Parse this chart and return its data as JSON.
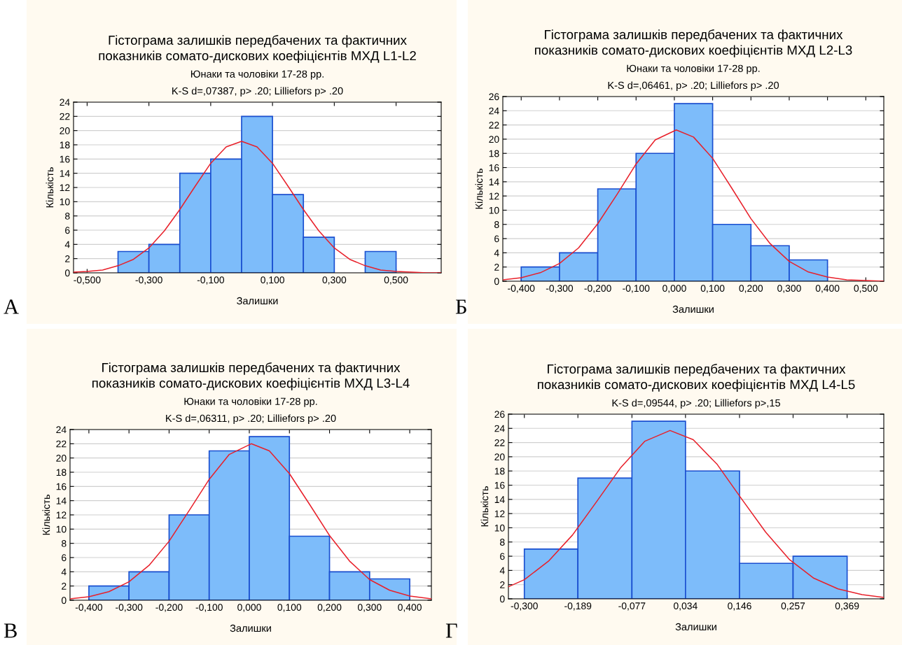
{
  "chart_data": [
    {
      "type": "histogram",
      "title": "Гістограма залишків передбачених та фактичних\nпоказників сомато-дискових коефіцієнтів МХД L1-L2",
      "subtitle": "Юнаки та чоловіки 17-28 рр.\nK-S d=,07387, p> .20; Lilliefors p> .20",
      "xlabel": "Залишки",
      "ylabel": "Кількість",
      "annotations": [
        "А"
      ],
      "bins": [
        -0.4,
        -0.3,
        -0.2,
        -0.1,
        0.0,
        0.1,
        0.2,
        0.3,
        0.4,
        0.5
      ],
      "values": [
        3,
        4,
        14,
        16,
        22,
        11,
        5,
        0,
        3
      ],
      "color": "#7dbcfa",
      "series": [
        {
          "type": "line",
          "color": "#e8202a",
          "x": [
            -0.544,
            -0.5,
            -0.45,
            -0.4,
            -0.35,
            -0.3,
            -0.25,
            -0.2,
            -0.15,
            -0.1,
            -0.05,
            0.0,
            0.05,
            0.1,
            0.15,
            0.2,
            0.25,
            0.3,
            0.35,
            0.4,
            0.45,
            0.5,
            0.55,
            0.6,
            0.646
          ],
          "values": [
            0.1,
            0.2,
            0.4,
            1.0,
            1.9,
            3.5,
            5.9,
            8.9,
            12.2,
            15.4,
            17.7,
            18.5,
            17.7,
            15.4,
            12.2,
            8.9,
            5.9,
            3.5,
            1.9,
            1.0,
            0.4,
            0.2,
            0.1,
            0.0,
            0.0
          ]
        }
      ],
      "xlim": [
        -0.544,
        0.646
      ],
      "xticks": [
        {
          "value": -0.5,
          "label": "-0,500"
        },
        {
          "value": -0.3,
          "label": "-0,300"
        },
        {
          "value": -0.1,
          "label": "-0,100"
        },
        {
          "value": 0.1,
          "label": "0,100"
        },
        {
          "value": 0.3,
          "label": "0,300"
        },
        {
          "value": 0.5,
          "label": "0,500"
        }
      ],
      "ylim": [
        0,
        24
      ],
      "yticks": [
        0,
        2,
        4,
        6,
        8,
        10,
        12,
        14,
        16,
        18,
        20,
        22,
        24
      ],
      "grid": "y"
    },
    {
      "type": "histogram",
      "title": "Гістограма залишків передбачених та фактичних\nпоказників сомато-дискових коефіцієнтів МХД L2-L3",
      "subtitle": "Юнаки та чоловіки 17-28 рр.\nK-S d=,06461, p> .20; Lilliefors p> .20",
      "xlabel": "Залишки",
      "ylabel": "Кількість",
      "annotations": [
        "Б"
      ],
      "bins": [
        -0.4,
        -0.3,
        -0.2,
        -0.1,
        0.0,
        0.1,
        0.2,
        0.3,
        0.4
      ],
      "values": [
        2,
        4,
        13,
        18,
        25,
        8,
        5,
        3
      ],
      "color": "#7dbcfa",
      "series": [
        {
          "type": "line",
          "color": "#e8202a",
          "x": [
            -0.448,
            -0.4,
            -0.35,
            -0.3,
            -0.25,
            -0.2,
            -0.15,
            -0.1,
            -0.05,
            0.005,
            0.05,
            0.1,
            0.15,
            0.2,
            0.25,
            0.3,
            0.35,
            0.4,
            0.45,
            0.5,
            0.547
          ],
          "values": [
            0.2,
            0.5,
            1.2,
            2.5,
            4.7,
            8.1,
            12.2,
            16.5,
            19.9,
            21.3,
            20.3,
            17.3,
            13.1,
            8.8,
            5.3,
            2.8,
            1.3,
            0.6,
            0.2,
            0.1,
            0.0
          ]
        }
      ],
      "xlim": [
        -0.448,
        0.547
      ],
      "xticks": [
        {
          "value": -0.4,
          "label": "-0,400"
        },
        {
          "value": -0.3,
          "label": "-0,300"
        },
        {
          "value": -0.2,
          "label": "-0,200"
        },
        {
          "value": -0.1,
          "label": "-0,100"
        },
        {
          "value": 0.0,
          "label": "0,000"
        },
        {
          "value": 0.1,
          "label": "0,100"
        },
        {
          "value": 0.2,
          "label": "0,200"
        },
        {
          "value": 0.3,
          "label": "0,300"
        },
        {
          "value": 0.4,
          "label": "0,400"
        },
        {
          "value": 0.5,
          "label": "0,500"
        }
      ],
      "ylim": [
        0,
        26
      ],
      "yticks": [
        0,
        2,
        4,
        6,
        8,
        10,
        12,
        14,
        16,
        18,
        20,
        22,
        24,
        26
      ],
      "grid": "y"
    },
    {
      "type": "histogram",
      "title": "Гістограма залишків передбачених та фактичних\nпоказників сомато-дискових коефіцієнтів МХД L3-L4",
      "subtitle": "Юнаки та чоловіки 17-28 рр.\nK-S d=,06311, p> .20; Lilliefors p> .20",
      "xlabel": "Залишки",
      "ylabel": "Кількість",
      "annotations": [
        "В"
      ],
      "bins": [
        -0.4,
        -0.3,
        -0.2,
        -0.1,
        0.0,
        0.1,
        0.2,
        0.3,
        0.4
      ],
      "values": [
        2,
        4,
        12,
        21,
        23,
        9,
        4,
        3
      ],
      "color": "#7dbcfa",
      "series": [
        {
          "type": "line",
          "color": "#e8202a",
          "x": [
            -0.447,
            -0.4,
            -0.35,
            -0.3,
            -0.25,
            -0.2,
            -0.15,
            -0.1,
            -0.05,
            0.005,
            0.05,
            0.1,
            0.15,
            0.2,
            0.25,
            0.3,
            0.35,
            0.4,
            0.454
          ],
          "values": [
            0.2,
            0.5,
            1.2,
            2.6,
            4.9,
            8.3,
            12.6,
            17.0,
            20.5,
            22.0,
            21.0,
            17.8,
            13.5,
            9.1,
            5.5,
            2.9,
            1.4,
            0.6,
            0.2
          ]
        }
      ],
      "xlim": [
        -0.447,
        0.454
      ],
      "xticks": [
        {
          "value": -0.4,
          "label": "-0,400"
        },
        {
          "value": -0.3,
          "label": "-0,300"
        },
        {
          "value": -0.2,
          "label": "-0,200"
        },
        {
          "value": -0.1,
          "label": "-0,100"
        },
        {
          "value": 0.0,
          "label": "0,000"
        },
        {
          "value": 0.1,
          "label": "0,100"
        },
        {
          "value": 0.2,
          "label": "0,200"
        },
        {
          "value": 0.3,
          "label": "0,300"
        },
        {
          "value": 0.4,
          "label": "0,400"
        }
      ],
      "ylim": [
        0,
        24
      ],
      "yticks": [
        0,
        2,
        4,
        6,
        8,
        10,
        12,
        14,
        16,
        18,
        20,
        22,
        24
      ],
      "grid": "y"
    },
    {
      "type": "histogram",
      "title": "Гістограма залишків передбачених та фактичних\nпоказників сомато-дискових коефіцієнтів МХД L4-L5",
      "subtitle": "K-S d=,09544, p> .20; Lilliefors p>,15",
      "xlabel": "Залишки",
      "ylabel": "Кількість",
      "annotations": [
        "Г"
      ],
      "bins": [
        -0.3,
        -0.189,
        -0.077,
        0.034,
        0.146,
        0.257,
        0.369
      ],
      "values": [
        7,
        17,
        25,
        18,
        5,
        6
      ],
      "color": "#7dbcfa",
      "series": [
        {
          "type": "line",
          "color": "#e8202a",
          "x": [
            -0.333,
            -0.3,
            -0.25,
            -0.2,
            -0.15,
            -0.1,
            -0.05,
            0.002,
            0.05,
            0.1,
            0.15,
            0.2,
            0.25,
            0.3,
            0.35,
            0.4,
            0.445
          ],
          "values": [
            1.7,
            2.7,
            5.3,
            9.0,
            13.7,
            18.5,
            22.2,
            23.7,
            22.4,
            18.9,
            14.1,
            9.4,
            5.5,
            2.9,
            1.4,
            0.6,
            0.2
          ]
        }
      ],
      "xlim": [
        -0.333,
        0.445
      ],
      "xticks": [
        {
          "value": -0.3,
          "label": "-0,300"
        },
        {
          "value": -0.189,
          "label": "-0,189"
        },
        {
          "value": -0.077,
          "label": "-0,077"
        },
        {
          "value": 0.034,
          "label": "0,034"
        },
        {
          "value": 0.146,
          "label": "0,146"
        },
        {
          "value": 0.257,
          "label": "0,257"
        },
        {
          "value": 0.369,
          "label": "0,369"
        }
      ],
      "ylim": [
        0,
        26
      ],
      "yticks": [
        0,
        2,
        4,
        6,
        8,
        10,
        12,
        14,
        16,
        18,
        20,
        22,
        24,
        26
      ],
      "grid": "y"
    }
  ]
}
